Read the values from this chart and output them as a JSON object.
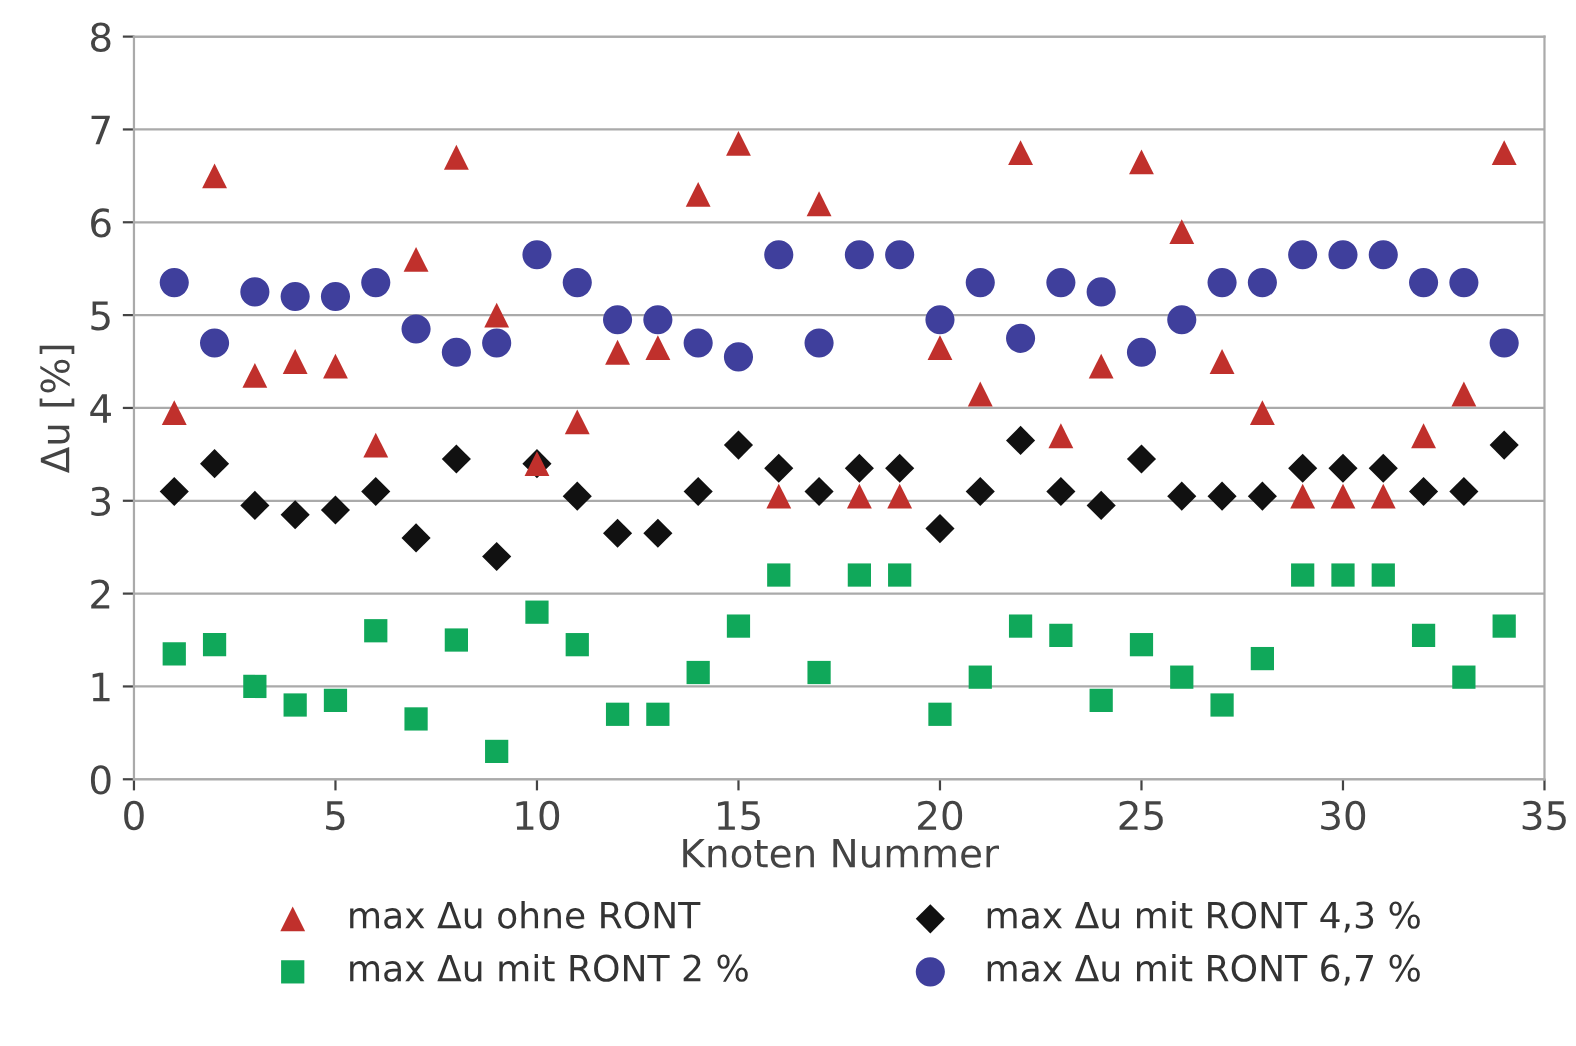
{
  "chart_data": {
    "type": "scatter",
    "xlabel": "Knoten Nummer",
    "ylabel": "Δu [%]",
    "xlim": [
      0,
      35
    ],
    "xticks": [
      0,
      5,
      10,
      15,
      20,
      25,
      30,
      35
    ],
    "ylim": [
      0,
      8
    ],
    "yticks": [
      0,
      1,
      2,
      3,
      4,
      5,
      6,
      7,
      8
    ],
    "grid": "y",
    "legend": "bottom",
    "x": [
      1,
      2,
      3,
      4,
      5,
      6,
      7,
      8,
      9,
      10,
      11,
      12,
      13,
      14,
      15,
      16,
      17,
      18,
      19,
      20,
      21,
      22,
      23,
      24,
      25,
      26,
      27,
      28,
      29,
      30,
      31,
      32,
      33,
      34
    ],
    "series": [
      {
        "name": "max Δu ohne RONT",
        "color": "#c0302c",
        "marker": "triangle",
        "values": [
          3.95,
          6.5,
          4.35,
          4.5,
          4.45,
          3.6,
          5.6,
          6.7,
          5.0,
          3.4,
          3.85,
          4.6,
          4.65,
          6.3,
          6.85,
          3.05,
          6.2,
          3.05,
          3.05,
          4.65,
          4.15,
          6.75,
          3.7,
          4.45,
          6.65,
          5.9,
          4.5,
          3.95,
          3.05,
          3.05,
          3.05,
          3.7,
          4.15,
          6.75
        ]
      },
      {
        "name": "max Δu mit RONT 4,3 %",
        "color": "#111111",
        "marker": "diamond",
        "values": [
          3.1,
          3.4,
          2.95,
          2.85,
          2.9,
          3.1,
          2.6,
          3.45,
          2.4,
          3.4,
          3.05,
          2.65,
          2.65,
          3.1,
          3.6,
          3.35,
          3.1,
          3.35,
          3.35,
          2.7,
          3.1,
          3.65,
          3.1,
          2.95,
          3.45,
          3.05,
          3.05,
          3.05,
          3.35,
          3.35,
          3.35,
          3.1,
          3.1,
          3.6
        ]
      },
      {
        "name": "max Δu mit RONT 2 %",
        "color": "#10a85a",
        "marker": "square",
        "values": [
          1.35,
          1.45,
          1.0,
          0.8,
          0.85,
          1.6,
          0.65,
          1.5,
          0.3,
          1.8,
          1.45,
          0.7,
          0.7,
          1.15,
          1.65,
          2.2,
          1.15,
          2.2,
          2.2,
          0.7,
          1.1,
          1.65,
          1.55,
          0.85,
          1.45,
          1.1,
          0.8,
          1.3,
          2.2,
          2.2,
          2.2,
          1.55,
          1.1,
          1.65
        ]
      },
      {
        "name": "max Δu mit RONT 6,7 %",
        "color": "#3f3f9c",
        "marker": "circle",
        "values": [
          5.35,
          4.7,
          5.25,
          5.2,
          5.2,
          5.35,
          4.85,
          4.6,
          4.7,
          5.65,
          5.35,
          4.95,
          4.95,
          4.7,
          4.55,
          5.65,
          4.7,
          5.65,
          5.65,
          4.95,
          5.35,
          4.75,
          5.35,
          5.25,
          4.6,
          4.95,
          5.35,
          5.35,
          5.65,
          5.65,
          5.65,
          5.35,
          5.35,
          4.7
        ]
      }
    ]
  }
}
